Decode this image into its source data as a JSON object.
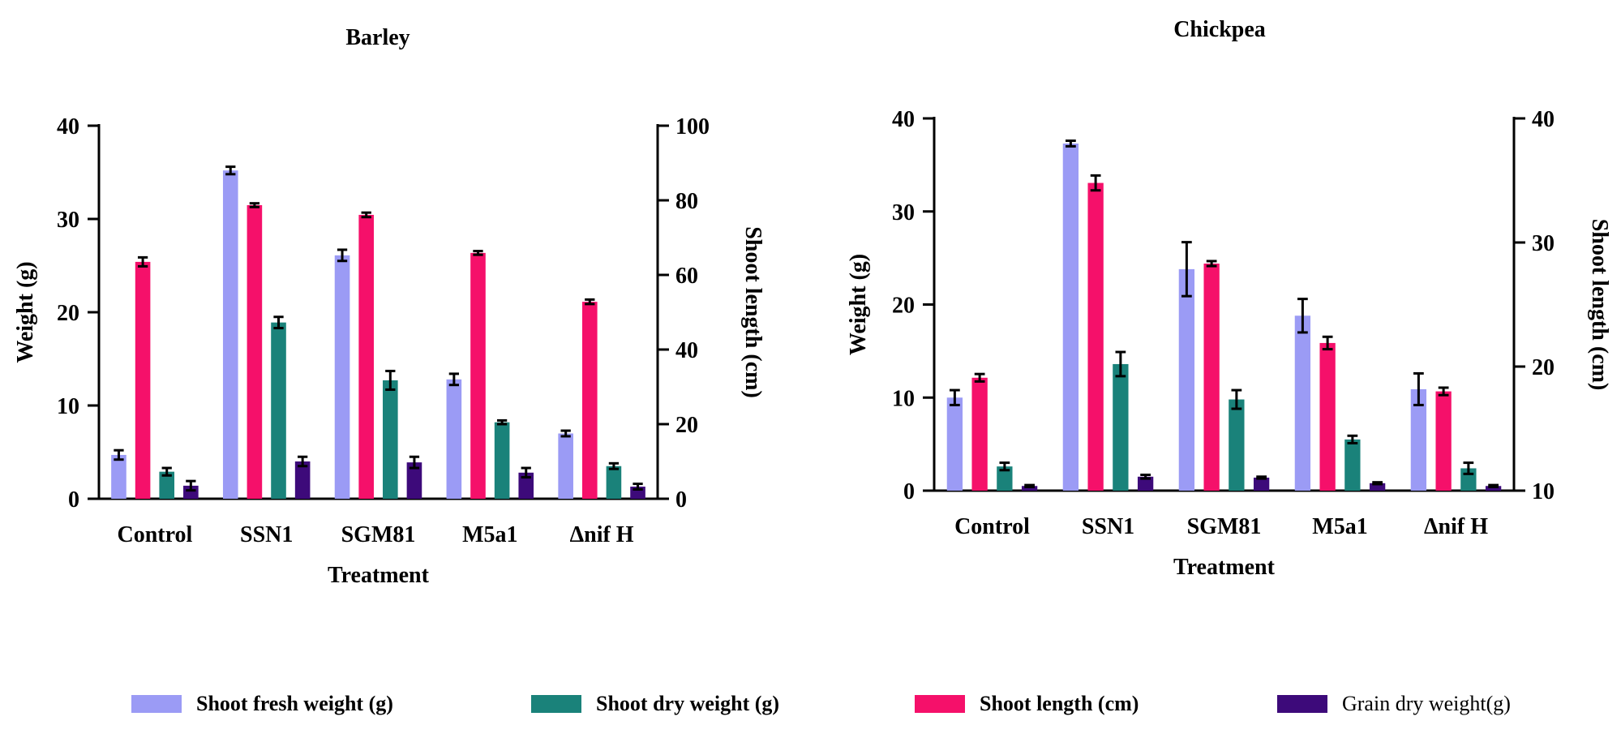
{
  "colors": {
    "shoot_fresh_weight": "#9b9bf5",
    "shoot_length": "#f5106a",
    "shoot_dry_weight": "#1a827a",
    "grain_dry_weight": "#3d0a7a",
    "axis": "#000000"
  },
  "legend": [
    {
      "key": "shoot_fresh_weight",
      "label": "Shoot fresh weight (g)",
      "bold": true
    },
    {
      "key": "shoot_dry_weight",
      "label": "Shoot dry weight (g)",
      "bold": true
    },
    {
      "key": "shoot_length",
      "label": "Shoot length (cm)",
      "bold": true
    },
    {
      "key": "grain_dry_weight",
      "label": "Grain dry weight(g)",
      "bold": false
    }
  ],
  "chart_data": [
    {
      "type": "bar",
      "title": "Barley",
      "xlabel": "Treatment",
      "ylabel": "Weight (g)",
      "y2label": "Shoot length (cm)",
      "ylim": [
        0,
        40
      ],
      "y2lim": [
        0,
        100
      ],
      "yticks": [
        0,
        10,
        20,
        30,
        40
      ],
      "y2ticks": [
        0,
        20,
        40,
        60,
        80,
        100
      ],
      "categories": [
        "Control",
        "SSN1",
        "SGM81",
        "M5a1",
        "Δnif H"
      ],
      "series": [
        {
          "name": "Shoot fresh weight (g)",
          "key": "shoot_fresh_weight",
          "axis": "left",
          "values": [
            4.7,
            35.2,
            26.1,
            12.8,
            7.0
          ],
          "errors": [
            0.5,
            0.4,
            0.6,
            0.6,
            0.3
          ]
        },
        {
          "name": "Shoot length (cm)",
          "key": "shoot_length",
          "axis": "right",
          "values": [
            63.5,
            78.7,
            76.1,
            65.9,
            52.8
          ],
          "errors": [
            1.2,
            0.5,
            0.6,
            0.5,
            0.6
          ]
        },
        {
          "name": "Shoot dry weight (g)",
          "key": "shoot_dry_weight",
          "axis": "left",
          "values": [
            2.9,
            18.9,
            12.7,
            8.2,
            3.5
          ],
          "errors": [
            0.4,
            0.6,
            1.0,
            0.2,
            0.3
          ]
        },
        {
          "name": "Grain dry weight(g)",
          "key": "grain_dry_weight",
          "axis": "left",
          "values": [
            1.4,
            4.0,
            3.9,
            2.8,
            1.3
          ],
          "errors": [
            0.5,
            0.5,
            0.6,
            0.5,
            0.3
          ]
        }
      ]
    },
    {
      "type": "bar",
      "title": "Chickpea",
      "xlabel": "Treatment",
      "ylabel": "Weight (g)",
      "y2label": "Shoot length (cm)",
      "ylim": [
        0,
        40
      ],
      "y2lim": [
        10,
        40
      ],
      "yticks": [
        0,
        10,
        20,
        30,
        40
      ],
      "y2ticks": [
        10,
        20,
        30,
        40
      ],
      "categories": [
        "Control",
        "SSN1",
        "SGM81",
        "M5a1",
        "Δnif H"
      ],
      "series": [
        {
          "name": "Shoot fresh weight (g)",
          "key": "shoot_fresh_weight",
          "axis": "left",
          "values": [
            10.0,
            37.3,
            23.8,
            18.8,
            10.9
          ],
          "errors": [
            0.8,
            0.3,
            2.9,
            1.8,
            1.7
          ]
        },
        {
          "name": "Shoot length (cm)",
          "key": "shoot_length",
          "axis": "right",
          "values": [
            19.1,
            34.8,
            28.3,
            21.9,
            18.0
          ],
          "errors": [
            0.3,
            0.6,
            0.2,
            0.5,
            0.3
          ]
        },
        {
          "name": "Shoot dry weight (g)",
          "key": "shoot_dry_weight",
          "axis": "left",
          "values": [
            2.6,
            13.6,
            9.8,
            5.5,
            2.4
          ],
          "errors": [
            0.4,
            1.3,
            1.0,
            0.4,
            0.6
          ]
        },
        {
          "name": "Grain dry weight(g)",
          "key": "grain_dry_weight",
          "axis": "left",
          "values": [
            0.5,
            1.5,
            1.4,
            0.8,
            0.5
          ],
          "errors": [
            0.1,
            0.2,
            0.1,
            0.1,
            0.1
          ]
        }
      ]
    }
  ]
}
